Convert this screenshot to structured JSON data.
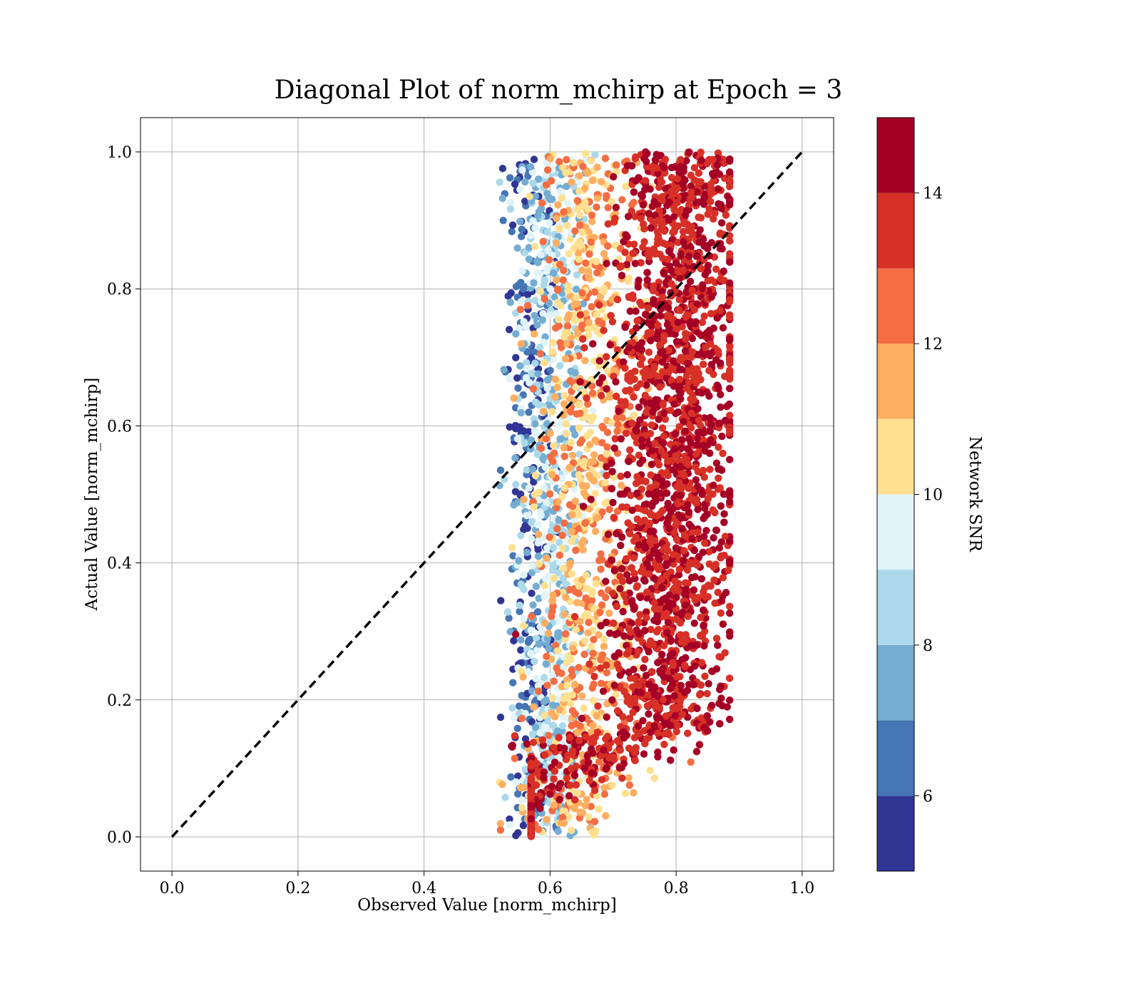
{
  "chart_data": {
    "type": "scatter",
    "title": "Diagonal Plot of norm_mchirp at Epoch = 3",
    "xlabel": "Observed Value [norm_mchirp]",
    "ylabel": "Actual Value [norm_mchirp]",
    "xlim": [
      -0.05,
      1.05
    ],
    "ylim": [
      -0.05,
      1.05
    ],
    "xticks": [
      "0.0",
      "0.2",
      "0.4",
      "0.6",
      "0.8",
      "1.0"
    ],
    "yticks": [
      "0.0",
      "0.2",
      "0.4",
      "0.6",
      "0.8",
      "1.0"
    ],
    "grid": true,
    "reference_line": {
      "style": "dashed",
      "color": "#000000",
      "from": [
        0.0,
        0.0
      ],
      "to": [
        1.0,
        1.0
      ]
    },
    "colorbar": {
      "label": "Network SNR",
      "range": [
        5,
        15
      ],
      "ticks": [
        "6",
        "8",
        "10",
        "12",
        "14"
      ],
      "colors": [
        "#313695",
        "#4575b4",
        "#74add1",
        "#abd9e9",
        "#e0f3f8",
        "#fee090",
        "#fdae61",
        "#f46d43",
        "#d73027",
        "#a50026"
      ]
    },
    "point_cloud": {
      "description_bands": [
        {
          "snr_min": 5,
          "snr_max": 7,
          "x_center": 0.57,
          "x_spread": 0.02
        },
        {
          "snr_min": 7,
          "snr_max": 10,
          "x_center": 0.6,
          "x_spread": 0.03
        },
        {
          "snr_min": 10,
          "snr_max": 13,
          "x_center": 0.66,
          "x_spread": 0.04
        },
        {
          "snr_min": 13,
          "snr_max": 15,
          "x_center": 0.79,
          "x_spread": 0.05
        }
      ]
    }
  }
}
